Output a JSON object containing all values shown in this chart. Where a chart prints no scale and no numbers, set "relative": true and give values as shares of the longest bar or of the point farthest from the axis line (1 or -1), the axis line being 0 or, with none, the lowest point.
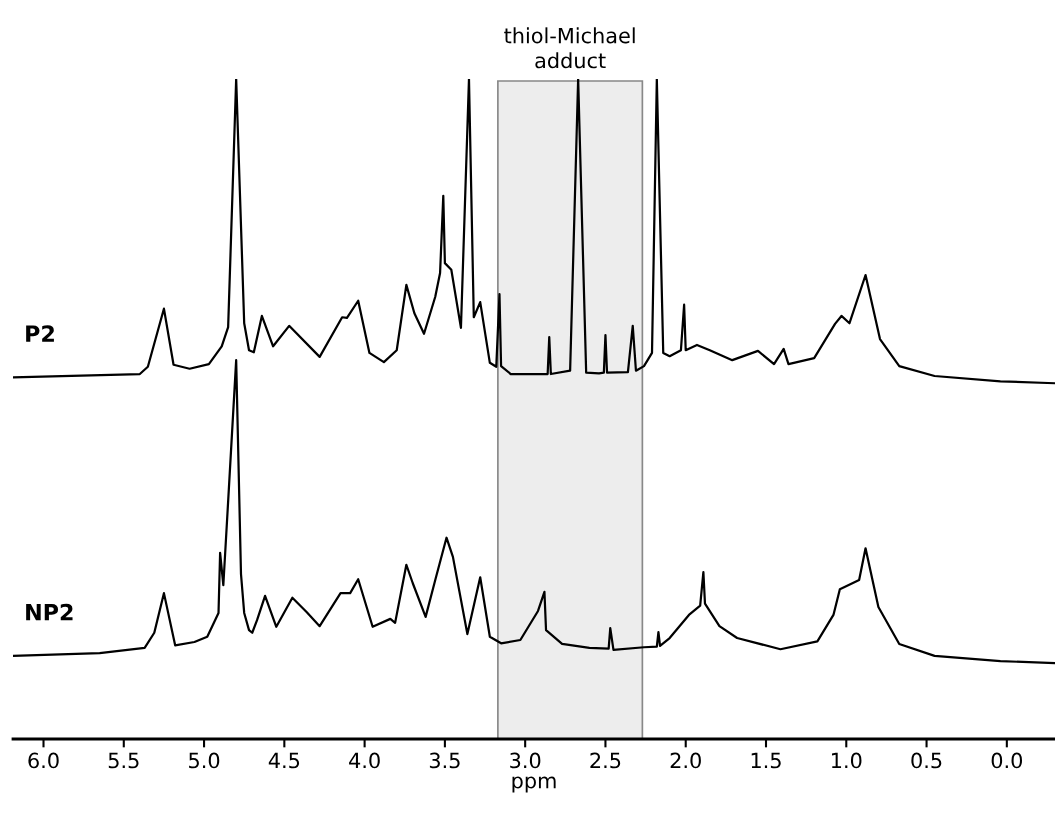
{
  "chart_data": {
    "type": "line",
    "relative": true,
    "xlabel": "ppm",
    "xlim": [
      6.19,
      -0.3
    ],
    "xticks": [
      {
        "value": 6.0,
        "label": "6.0"
      },
      {
        "value": 5.5,
        "label": "5.5"
      },
      {
        "value": 5.0,
        "label": "5.0"
      },
      {
        "value": 4.5,
        "label": "4.5"
      },
      {
        "value": 4.0,
        "label": "4.0"
      },
      {
        "value": 3.5,
        "label": "3.5"
      },
      {
        "value": 3.0,
        "label": "3.0"
      },
      {
        "value": 2.5,
        "label": "2.5"
      },
      {
        "value": 2.0,
        "label": "2.0"
      },
      {
        "value": 1.5,
        "label": "1.5"
      },
      {
        "value": 1.0,
        "label": "1.0"
      },
      {
        "value": 0.5,
        "label": "0.5"
      },
      {
        "value": 0.0,
        "label": "0.0"
      }
    ],
    "tick_labels": "x",
    "grid": false,
    "marker": "none",
    "line_style": "solid",
    "bands": [
      {
        "axis": "x",
        "from": 3.17,
        "to": 2.27,
        "label": "thiol-Michael\nadduct",
        "color": "#ededed"
      }
    ],
    "series": [
      {
        "name": "P2",
        "color": "#000000",
        "x": [
          6.19,
          5.4,
          5.35,
          5.25,
          5.19,
          5.09,
          4.97,
          4.89,
          4.85,
          4.8,
          4.75,
          4.72,
          4.69,
          4.64,
          4.57,
          4.47,
          4.28,
          4.14,
          4.11,
          4.04,
          3.97,
          3.88,
          3.8,
          3.74,
          3.69,
          3.63,
          3.56,
          3.53,
          3.51,
          3.5,
          3.46,
          3.4,
          3.35,
          3.32,
          3.28,
          3.22,
          3.18,
          3.16,
          3.15,
          3.09,
          2.97,
          2.86,
          2.85,
          2.84,
          2.72,
          2.67,
          2.62,
          2.54,
          2.51,
          2.5,
          2.49,
          2.36,
          2.33,
          2.31,
          2.26,
          2.21,
          2.18,
          2.14,
          2.1,
          2.03,
          2.01,
          2.0,
          1.93,
          1.85,
          1.71,
          1.55,
          1.45,
          1.39,
          1.36,
          1.2,
          1.07,
          1.03,
          0.98,
          0.88,
          0.79,
          0.67,
          0.45,
          0.04,
          -0.3
        ],
        "values": [
          0.548,
          0.553,
          0.564,
          0.652,
          0.567,
          0.561,
          0.568,
          0.595,
          0.624,
          1.0,
          0.63,
          0.589,
          0.586,
          0.641,
          0.595,
          0.626,
          0.579,
          0.639,
          0.638,
          0.664,
          0.585,
          0.571,
          0.589,
          0.688,
          0.645,
          0.614,
          0.67,
          0.706,
          0.823,
          0.721,
          0.711,
          0.623,
          1.0,
          0.639,
          0.662,
          0.57,
          0.564,
          0.674,
          0.565,
          0.553,
          0.553,
          0.553,
          0.609,
          0.553,
          0.558,
          1.0,
          0.555,
          0.554,
          0.555,
          0.612,
          0.555,
          0.556,
          0.626,
          0.558,
          0.565,
          0.585,
          1.0,
          0.585,
          0.58,
          0.589,
          0.658,
          0.589,
          0.597,
          0.589,
          0.574,
          0.588,
          0.568,
          0.591,
          0.568,
          0.577,
          0.629,
          0.641,
          0.63,
          0.703,
          0.606,
          0.565,
          0.55,
          0.542,
          0.539
        ]
      },
      {
        "name": "NP2",
        "color": "#000000",
        "x": [
          6.19,
          5.65,
          5.37,
          5.31,
          5.25,
          5.18,
          5.06,
          4.98,
          4.91,
          4.9,
          4.88,
          4.85,
          4.8,
          4.77,
          4.75,
          4.72,
          4.7,
          4.67,
          4.62,
          4.55,
          4.45,
          4.36,
          4.28,
          4.15,
          4.09,
          4.04,
          3.95,
          3.84,
          3.81,
          3.74,
          3.7,
          3.62,
          3.56,
          3.49,
          3.45,
          3.36,
          3.28,
          3.22,
          3.15,
          3.03,
          2.92,
          2.88,
          2.87,
          2.77,
          2.6,
          2.48,
          2.47,
          2.45,
          2.26,
          2.18,
          2.17,
          2.16,
          2.1,
          1.98,
          1.91,
          1.89,
          1.88,
          1.79,
          1.68,
          1.41,
          1.18,
          1.08,
          1.04,
          0.92,
          0.88,
          0.8,
          0.67,
          0.45,
          0.04,
          -0.3
        ],
        "values": [
          0.126,
          0.13,
          0.138,
          0.161,
          0.221,
          0.142,
          0.147,
          0.155,
          0.191,
          0.282,
          0.233,
          0.36,
          0.574,
          0.25,
          0.191,
          0.165,
          0.161,
          0.18,
          0.217,
          0.17,
          0.214,
          0.192,
          0.171,
          0.221,
          0.221,
          0.242,
          0.17,
          0.182,
          0.176,
          0.264,
          0.236,
          0.185,
          0.241,
          0.305,
          0.276,
          0.159,
          0.245,
          0.155,
          0.145,
          0.15,
          0.194,
          0.223,
          0.165,
          0.144,
          0.138,
          0.137,
          0.168,
          0.135,
          0.139,
          0.14,
          0.162,
          0.141,
          0.153,
          0.188,
          0.202,
          0.253,
          0.205,
          0.171,
          0.153,
          0.136,
          0.148,
          0.188,
          0.227,
          0.241,
          0.289,
          0.2,
          0.144,
          0.126,
          0.118,
          0.115
        ]
      }
    ]
  }
}
